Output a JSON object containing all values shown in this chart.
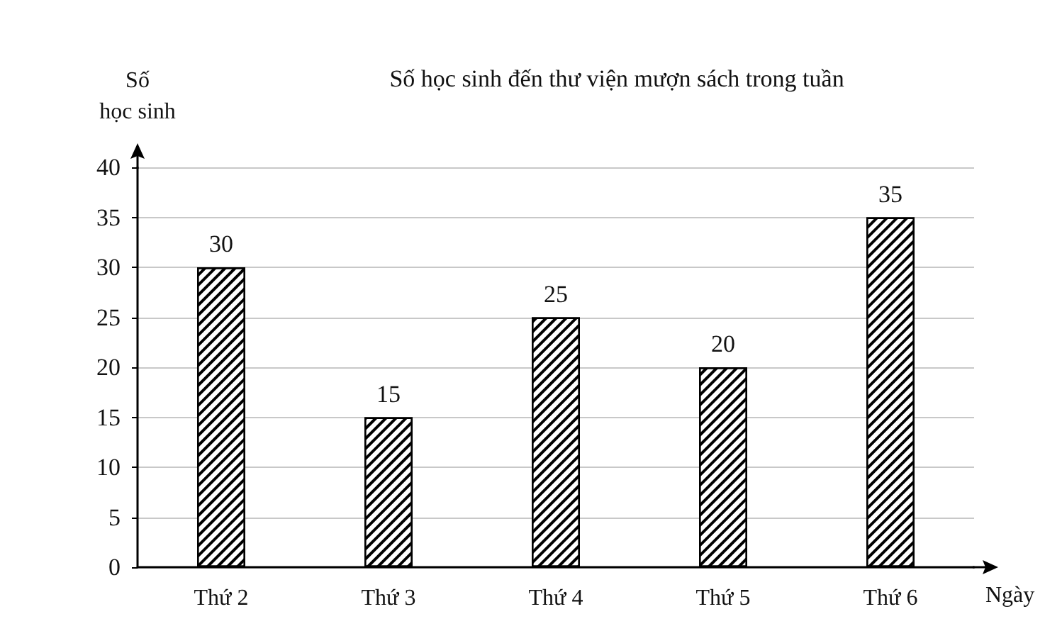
{
  "chart_data": {
    "type": "bar",
    "title": "Số học sinh đến thư viện mượn sách trong tuần",
    "xlabel": "Ngày",
    "ylabel": "Số\nhọc sinh",
    "categories": [
      "Thứ 2",
      "Thứ 3",
      "Thứ 4",
      "Thứ 5",
      "Thứ 6"
    ],
    "values": [
      30,
      15,
      25,
      20,
      35
    ],
    "color": "#000000",
    "ylim": [
      0,
      40
    ],
    "yticks": [
      0,
      5,
      10,
      15,
      20,
      25,
      30,
      35,
      40
    ],
    "grid": "y",
    "data_labels": true
  }
}
